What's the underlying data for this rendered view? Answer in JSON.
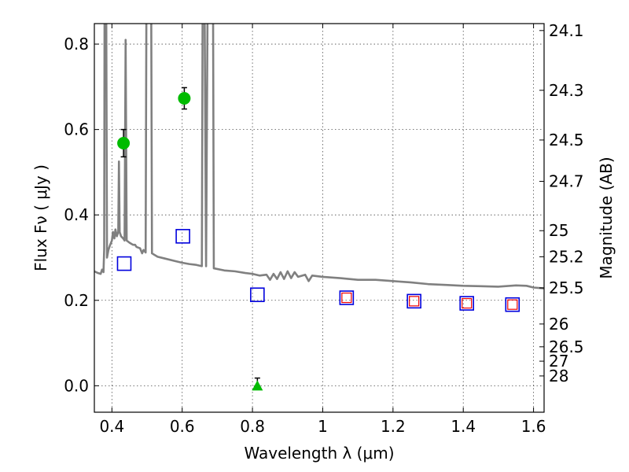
{
  "chart_data": {
    "type": "scatter",
    "title": "",
    "xlabel": "Wavelength  λ (μm)",
    "ylabel": "Flux  Fν  ( μJy )",
    "ylabel_right": "Magnitude (AB)",
    "xlim": [
      0.35,
      1.63
    ],
    "ylim": [
      -0.062,
      0.848
    ],
    "xticks": [
      0.4,
      0.6,
      0.8,
      1.0,
      1.2,
      1.4,
      1.6
    ],
    "xtick_labels": [
      "0.4",
      "0.6",
      "0.8",
      "1",
      "1.2",
      "1.4",
      "1.6"
    ],
    "yticks": [
      0.0,
      0.2,
      0.4,
      0.6,
      0.8
    ],
    "ytick_labels": [
      "0.0",
      "0.2",
      "0.4",
      "0.6",
      "0.8"
    ],
    "mag_ticks": [
      24.1,
      24.3,
      24.5,
      24.7,
      25,
      25.2,
      25.5,
      26,
      26.5,
      27,
      28
    ],
    "mag_tick_labels": [
      "24.1",
      "24.3",
      "24.5",
      "24.7",
      "25",
      "25.2",
      "25.5",
      "26",
      "26.5",
      "27",
      "28"
    ],
    "grid": true,
    "colors": {
      "model": "#808080",
      "detection": "#00bb00",
      "model_box": "#0000dd",
      "inner_box": "#ee0000",
      "error_bar": "#000000"
    },
    "series": [
      {
        "name": "Model spectrum",
        "kind": "line",
        "points": [
          [
            0.35,
            0.268
          ],
          [
            0.36,
            0.264
          ],
          [
            0.368,
            0.262
          ],
          [
            0.372,
            0.272
          ],
          [
            0.376,
            0.266
          ],
          [
            0.378,
            0.32
          ],
          [
            0.379,
            0.85
          ],
          [
            0.384,
            0.85
          ],
          [
            0.386,
            0.3
          ],
          [
            0.39,
            0.318
          ],
          [
            0.395,
            0.33
          ],
          [
            0.4,
            0.34
          ],
          [
            0.403,
            0.36
          ],
          [
            0.407,
            0.345
          ],
          [
            0.41,
            0.366
          ],
          [
            0.414,
            0.35
          ],
          [
            0.418,
            0.36
          ],
          [
            0.42,
            0.525
          ],
          [
            0.422,
            0.36
          ],
          [
            0.426,
            0.35
          ],
          [
            0.432,
            0.345
          ],
          [
            0.436,
            0.34
          ],
          [
            0.439,
            0.81
          ],
          [
            0.442,
            0.34
          ],
          [
            0.45,
            0.335
          ],
          [
            0.46,
            0.33
          ],
          [
            0.466,
            0.33
          ],
          [
            0.47,
            0.325
          ],
          [
            0.48,
            0.322
          ],
          [
            0.486,
            0.31
          ],
          [
            0.49,
            0.318
          ],
          [
            0.496,
            0.312
          ],
          [
            0.498,
            0.85
          ],
          [
            0.512,
            0.85
          ],
          [
            0.514,
            0.31
          ],
          [
            0.53,
            0.302
          ],
          [
            0.55,
            0.298
          ],
          [
            0.58,
            0.292
          ],
          [
            0.6,
            0.288
          ],
          [
            0.62,
            0.285
          ],
          [
            0.64,
            0.283
          ],
          [
            0.656,
            0.28
          ],
          [
            0.658,
            0.85
          ],
          [
            0.664,
            0.85
          ],
          [
            0.668,
            0.28
          ],
          [
            0.672,
            0.85
          ],
          [
            0.688,
            0.85
          ],
          [
            0.69,
            0.275
          ],
          [
            0.72,
            0.27
          ],
          [
            0.75,
            0.268
          ],
          [
            0.78,
            0.264
          ],
          [
            0.8,
            0.262
          ],
          [
            0.82,
            0.258
          ],
          [
            0.84,
            0.26
          ],
          [
            0.85,
            0.248
          ],
          [
            0.86,
            0.262
          ],
          [
            0.87,
            0.25
          ],
          [
            0.88,
            0.266
          ],
          [
            0.89,
            0.25
          ],
          [
            0.9,
            0.268
          ],
          [
            0.91,
            0.252
          ],
          [
            0.92,
            0.266
          ],
          [
            0.93,
            0.255
          ],
          [
            0.95,
            0.26
          ],
          [
            0.96,
            0.245
          ],
          [
            0.97,
            0.258
          ],
          [
            1.0,
            0.255
          ],
          [
            1.05,
            0.252
          ],
          [
            1.1,
            0.248
          ],
          [
            1.15,
            0.248
          ],
          [
            1.2,
            0.245
          ],
          [
            1.25,
            0.242
          ],
          [
            1.3,
            0.238
          ],
          [
            1.35,
            0.236
          ],
          [
            1.4,
            0.234
          ],
          [
            1.45,
            0.233
          ],
          [
            1.5,
            0.232
          ],
          [
            1.55,
            0.235
          ],
          [
            1.58,
            0.234
          ],
          [
            1.6,
            0.23
          ],
          [
            1.63,
            0.228
          ]
        ]
      },
      {
        "name": "Observed photometry",
        "kind": "circle",
        "points": [
          {
            "x": 0.433,
            "y": 0.568,
            "yerr": 0.032
          },
          {
            "x": 0.606,
            "y": 0.673,
            "yerr": 0.025
          }
        ]
      },
      {
        "name": "Upper limit",
        "kind": "triangle",
        "points": [
          {
            "x": 0.814,
            "y": -0.002,
            "yerr": 0.02
          }
        ]
      },
      {
        "name": "Model photometry",
        "kind": "square",
        "points": [
          {
            "x": 0.435,
            "y": 0.286
          },
          {
            "x": 0.602,
            "y": 0.35
          },
          {
            "x": 0.814,
            "y": 0.213
          },
          {
            "x": 1.068,
            "y": 0.206
          },
          {
            "x": 1.26,
            "y": 0.198
          },
          {
            "x": 1.41,
            "y": 0.193
          },
          {
            "x": 1.54,
            "y": 0.19
          }
        ]
      },
      {
        "name": "Model photometry (inner)",
        "kind": "inner-square",
        "points": [
          {
            "x": 1.068,
            "y": 0.206
          },
          {
            "x": 1.26,
            "y": 0.198
          },
          {
            "x": 1.41,
            "y": 0.193
          },
          {
            "x": 1.54,
            "y": 0.19
          }
        ]
      }
    ]
  }
}
